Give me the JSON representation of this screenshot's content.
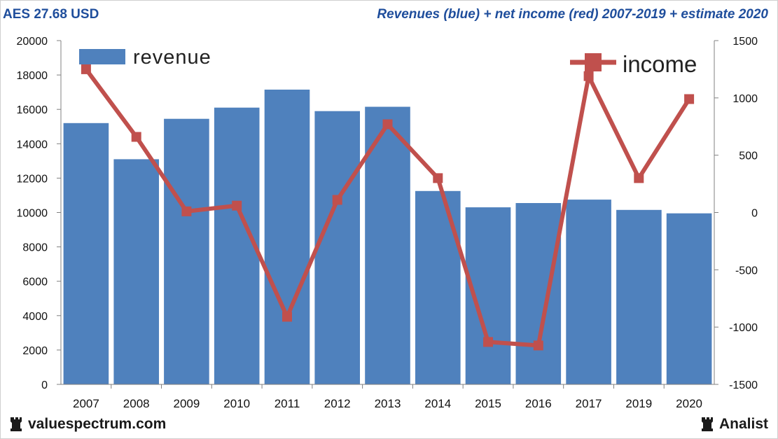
{
  "header": {
    "ticker": "AES 27.68 USD",
    "title": "Revenues (blue) + net income (red) 2007-2019 + estimate 2020"
  },
  "footer": {
    "left_brand": "valuespectrum.com",
    "right_brand": "Analist",
    "icon": "rook-icon"
  },
  "colors": {
    "accent": "#1f4e9c",
    "bar": "#4f81bd",
    "line": "#c0504d"
  },
  "chart_data": {
    "type": "bar+line",
    "title": "Revenues (blue) + net income (red) 2007-2019 + estimate 2020",
    "categories": [
      "2007",
      "2008",
      "2009",
      "2010",
      "2011",
      "2012",
      "2013",
      "2014",
      "2015",
      "2016",
      "2017",
      "2019",
      "2020"
    ],
    "series": [
      {
        "name": "revenue",
        "type": "bar",
        "axis": "left",
        "values": [
          15200,
          13100,
          15450,
          16100,
          17150,
          15900,
          16150,
          11250,
          10300,
          10550,
          10750,
          10150,
          9950
        ]
      },
      {
        "name": "income",
        "type": "line",
        "axis": "right",
        "values": [
          1250,
          660,
          10,
          60,
          -910,
          110,
          770,
          300,
          -1130,
          -1160,
          1190,
          300,
          990
        ]
      }
    ],
    "left_axis": {
      "ylim": [
        0,
        20000
      ],
      "ticks": [
        0,
        2000,
        4000,
        6000,
        8000,
        10000,
        12000,
        14000,
        16000,
        18000,
        20000
      ]
    },
    "right_axis": {
      "ylim": [
        -1500,
        1500
      ],
      "ticks": [
        -1500,
        -1000,
        -500,
        0,
        500,
        1000,
        1500
      ]
    },
    "legend": [
      {
        "label": "revenue",
        "position": "top-left"
      },
      {
        "label": "income",
        "position": "top-right"
      }
    ],
    "grid": false
  }
}
